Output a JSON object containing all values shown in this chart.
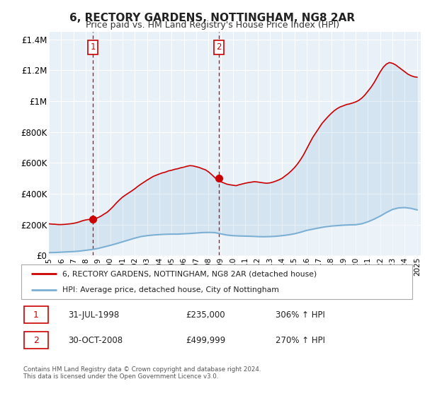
{
  "title": "6, RECTORY GARDENS, NOTTINGHAM, NG8 2AR",
  "subtitle": "Price paid vs. HM Land Registry's House Price Index (HPI)",
  "legend_line1": "6, RECTORY GARDENS, NOTTINGHAM, NG8 2AR (detached house)",
  "legend_line2": "HPI: Average price, detached house, City of Nottingham",
  "footnote": "Contains HM Land Registry data © Crown copyright and database right 2024.\nThis data is licensed under the Open Government Licence v3.0.",
  "purchase1_date": "31-JUL-1998",
  "purchase1_price": 235000,
  "purchase1_hpi_pct": "306%",
  "purchase2_date": "30-OCT-2008",
  "purchase2_price": 499999,
  "purchase2_hpi_pct": "270%",
  "purchase1_x": 1998.58,
  "purchase2_x": 2008.83,
  "xlim": [
    1995.0,
    2025.3
  ],
  "ylim": [
    0,
    1450000
  ],
  "yticks": [
    0,
    200000,
    400000,
    600000,
    800000,
    1000000,
    1200000,
    1400000
  ],
  "ytick_labels": [
    "£0",
    "£200K",
    "£400K",
    "£600K",
    "£800K",
    "£1M",
    "£1.2M",
    "£1.4M"
  ],
  "background_color": "#ffffff",
  "plot_bg_color": "#e8f0f8",
  "grid_color": "#ffffff",
  "red_line_color": "#cc0000",
  "blue_line_color": "#7bafd4",
  "vline_color": "#cc0000",
  "marker_color": "#cc0000",
  "box_color": "#cc0000",
  "hpi_x": [
    1995.0,
    1995.5,
    1996.0,
    1996.5,
    1997.0,
    1997.5,
    1998.0,
    1998.5,
    1999.0,
    1999.5,
    2000.0,
    2000.5,
    2001.0,
    2001.5,
    2002.0,
    2002.5,
    2003.0,
    2003.5,
    2004.0,
    2004.5,
    2005.0,
    2005.5,
    2006.0,
    2006.5,
    2007.0,
    2007.5,
    2008.0,
    2008.5,
    2009.0,
    2009.5,
    2010.0,
    2010.5,
    2011.0,
    2011.5,
    2012.0,
    2012.5,
    2013.0,
    2013.5,
    2014.0,
    2014.5,
    2015.0,
    2015.5,
    2016.0,
    2016.5,
    2017.0,
    2017.5,
    2018.0,
    2018.5,
    2019.0,
    2019.5,
    2020.0,
    2020.5,
    2021.0,
    2021.5,
    2022.0,
    2022.5,
    2023.0,
    2023.5,
    2024.0,
    2024.5,
    2025.0
  ],
  "hpi_y": [
    18000,
    19000,
    21000,
    23000,
    25000,
    28000,
    33000,
    38000,
    45000,
    55000,
    65000,
    76000,
    88000,
    100000,
    112000,
    122000,
    128000,
    132000,
    135000,
    137000,
    138000,
    138000,
    140000,
    142000,
    145000,
    148000,
    149000,
    148000,
    140000,
    132000,
    128000,
    126000,
    125000,
    124000,
    122000,
    121000,
    122000,
    124000,
    128000,
    133000,
    140000,
    150000,
    162000,
    170000,
    178000,
    185000,
    190000,
    193000,
    196000,
    198000,
    199000,
    205000,
    218000,
    235000,
    255000,
    278000,
    298000,
    308000,
    310000,
    305000,
    295000
  ],
  "red_x": [
    1995.0,
    1995.25,
    1995.5,
    1995.75,
    1996.0,
    1996.25,
    1996.5,
    1996.75,
    1997.0,
    1997.25,
    1997.5,
    1997.75,
    1998.0,
    1998.25,
    1998.58,
    1998.75,
    1999.0,
    1999.25,
    1999.5,
    1999.75,
    2000.0,
    2000.25,
    2000.5,
    2000.75,
    2001.0,
    2001.25,
    2001.5,
    2001.75,
    2002.0,
    2002.25,
    2002.5,
    2002.75,
    2003.0,
    2003.25,
    2003.5,
    2003.75,
    2004.0,
    2004.25,
    2004.5,
    2004.75,
    2005.0,
    2005.25,
    2005.5,
    2005.75,
    2006.0,
    2006.25,
    2006.5,
    2006.75,
    2007.0,
    2007.25,
    2007.5,
    2007.75,
    2008.0,
    2008.25,
    2008.58,
    2008.75,
    2009.0,
    2009.25,
    2009.5,
    2009.75,
    2010.0,
    2010.25,
    2010.5,
    2010.75,
    2011.0,
    2011.25,
    2011.5,
    2011.75,
    2012.0,
    2012.25,
    2012.5,
    2012.75,
    2013.0,
    2013.25,
    2013.5,
    2013.75,
    2014.0,
    2014.25,
    2014.5,
    2014.75,
    2015.0,
    2015.25,
    2015.5,
    2015.75,
    2016.0,
    2016.25,
    2016.5,
    2016.75,
    2017.0,
    2017.25,
    2017.5,
    2017.75,
    2018.0,
    2018.25,
    2018.5,
    2018.75,
    2019.0,
    2019.25,
    2019.5,
    2019.75,
    2020.0,
    2020.25,
    2020.5,
    2020.75,
    2021.0,
    2021.25,
    2021.5,
    2021.75,
    2022.0,
    2022.25,
    2022.5,
    2022.75,
    2023.0,
    2023.25,
    2023.5,
    2023.75,
    2024.0,
    2024.25,
    2024.5,
    2024.75,
    2025.0
  ],
  "red_y": [
    205000,
    203000,
    202000,
    200000,
    200000,
    201000,
    203000,
    205000,
    208000,
    212000,
    218000,
    225000,
    230000,
    233000,
    235000,
    238000,
    245000,
    255000,
    268000,
    280000,
    298000,
    318000,
    340000,
    360000,
    378000,
    392000,
    405000,
    418000,
    432000,
    448000,
    462000,
    475000,
    488000,
    500000,
    512000,
    520000,
    528000,
    535000,
    540000,
    548000,
    552000,
    558000,
    562000,
    568000,
    572000,
    578000,
    582000,
    580000,
    575000,
    570000,
    562000,
    555000,
    542000,
    525000,
    499999,
    490000,
    478000,
    470000,
    462000,
    458000,
    455000,
    452000,
    458000,
    463000,
    468000,
    472000,
    475000,
    478000,
    476000,
    473000,
    470000,
    468000,
    470000,
    475000,
    482000,
    490000,
    500000,
    515000,
    530000,
    548000,
    568000,
    592000,
    620000,
    652000,
    690000,
    728000,
    765000,
    795000,
    825000,
    855000,
    878000,
    900000,
    920000,
    938000,
    952000,
    963000,
    970000,
    978000,
    982000,
    988000,
    995000,
    1005000,
    1020000,
    1040000,
    1065000,
    1090000,
    1120000,
    1155000,
    1190000,
    1220000,
    1240000,
    1250000,
    1245000,
    1235000,
    1220000,
    1205000,
    1190000,
    1175000,
    1165000,
    1158000,
    1155000
  ]
}
